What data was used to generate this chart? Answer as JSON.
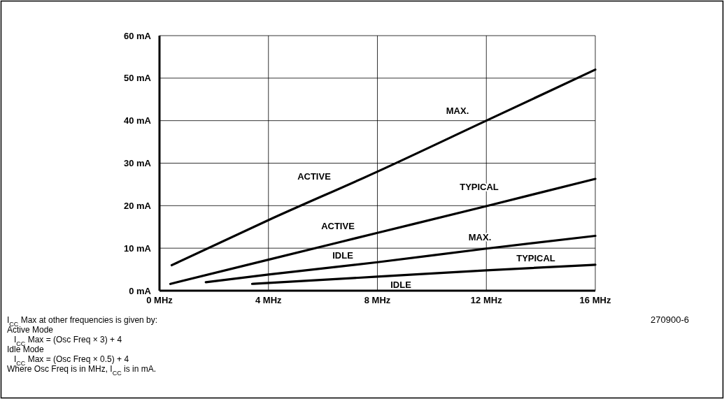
{
  "chart_data": {
    "type": "line",
    "series": [
      {
        "color": "#000000",
        "x": [
          0.45,
          4,
          8,
          12,
          16
        ],
        "values": [
          6,
          16.6,
          28,
          40,
          52
        ]
      },
      {
        "color": "#000000",
        "x": [
          0.4,
          4,
          8,
          12,
          16
        ],
        "values": [
          1.6,
          7.3,
          13.6,
          19.9,
          26.3
        ]
      },
      {
        "color": "#000000",
        "x": [
          1.7,
          4,
          8,
          12,
          16
        ],
        "values": [
          2,
          3.8,
          6.7,
          9.9,
          12.9
        ]
      },
      {
        "color": "#000000",
        "x": [
          3.4,
          8,
          12,
          16
        ],
        "values": [
          1.6,
          3.3,
          4.8,
          6.1
        ]
      }
    ],
    "xlim": [
      0,
      16
    ],
    "ylim": [
      0,
      60
    ],
    "xticks": [
      {
        "value": 0,
        "label": "0 MHz"
      },
      {
        "value": 4,
        "label": "4 MHz"
      },
      {
        "value": 8,
        "label": "8 MHz"
      },
      {
        "value": 12,
        "label": "12 MHz"
      },
      {
        "value": 16,
        "label": "16 MHz"
      }
    ],
    "yticks": [
      {
        "value": 0,
        "label": "0 mA"
      },
      {
        "value": 10,
        "label": "10 mA"
      },
      {
        "value": 20,
        "label": "20 mA"
      },
      {
        "value": 30,
        "label": "30 mA"
      },
      {
        "value": 40,
        "label": "40 mA"
      },
      {
        "value": 50,
        "label": "50 mA"
      },
      {
        "value": 60,
        "label": "60 mA"
      }
    ],
    "grid": true,
    "marker": "none",
    "line_style": "solid",
    "annotations": [
      "ACTIVE",
      "MAX.",
      "ACTIVE",
      "TYPICAL",
      "IDLE",
      "MAX.",
      "TYPICAL",
      "IDLE",
      "270900-6",
      "I$_{CC}$ Max at other frequencies is given by:",
      "Active Mode",
      "   I$_{CC}$ Max = (Osc Freq × 3) + 4",
      "Idle Mode",
      "   I$_{CC}$ Max = (Osc Freq × 0.5) + 4",
      "Where Osc Freq is in MHz, I$_{CC}$ is in mA."
    ]
  }
}
